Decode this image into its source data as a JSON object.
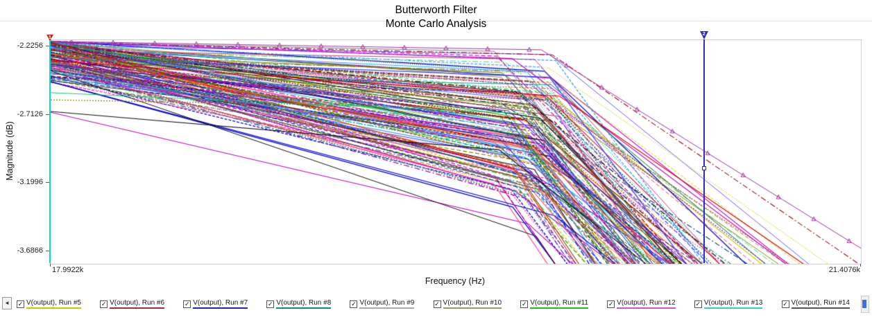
{
  "chart": {
    "title_line1": "Butterworth Filter",
    "title_line2": "Monte Carlo Analysis",
    "xlabel": "Frequency (Hz)",
    "ylabel": "Magnitude (dB)"
  },
  "cursors": [
    {
      "label": "1",
      "freq_hz": 17992.2,
      "line_color": "#00dcdc",
      "flag_color": "#d42222"
    },
    {
      "label": "2",
      "freq_hz": 20749.0,
      "line_color": "#2b2bc8",
      "flag_color": "#2b2bc8"
    }
  ],
  "legend": {
    "scroll_left_glyph": "◄",
    "check_glyph": "✓",
    "scrollbar_thumb_color": "#3f6fe0",
    "items": [
      {
        "label": "V(output), Run #5",
        "color": "#c8c800",
        "checked": true
      },
      {
        "label": "V(output), Run #6",
        "color": "#a03030",
        "checked": true
      },
      {
        "label": "V(output), Run #7",
        "color": "#2222bb",
        "checked": true
      },
      {
        "label": "V(output), Run #8",
        "color": "#118888",
        "checked": true
      },
      {
        "label": "V(output), Run #9",
        "color": "#aaaaaa",
        "checked": true
      },
      {
        "label": "V(output), Run #10",
        "color": "#999966",
        "checked": true
      },
      {
        "label": "V(output), Run #11",
        "color": "#22bb22",
        "checked": true
      },
      {
        "label": "V(output), Run #12",
        "color": "#cc55cc",
        "checked": true
      },
      {
        "label": "V(output), Run #13",
        "color": "#33cccc",
        "checked": true
      },
      {
        "label": "V(output), Run #14",
        "color": "#555555",
        "checked": true
      }
    ]
  },
  "chart_data": {
    "type": "line",
    "title": "Butterworth Filter — Monte Carlo Analysis",
    "xlabel": "Frequency (Hz)",
    "ylabel": "Magnitude (dB)",
    "xlim": [
      17992.2,
      21407.6
    ],
    "ylim": [
      -3.776,
      -2.181
    ],
    "x_ticks": [
      {
        "value": 17992.2,
        "label": "17.9922k"
      },
      {
        "value": 21407.6,
        "label": "21.4076k"
      }
    ],
    "y_ticks": [
      {
        "value": -2.2256,
        "label": "-2.2256"
      },
      {
        "value": -2.7126,
        "label": "-2.7126"
      },
      {
        "value": -3.1996,
        "label": "-3.1996"
      },
      {
        "value": -3.6866,
        "label": "-3.6866"
      }
    ],
    "grid": false,
    "legend_position": "bottom",
    "ensemble": {
      "description": "Approximately 150+ overlapping Monte Carlo run traces of V(output) magnitude vs frequency. Each run falls gently (about 0.1 to 1.0 dB) from 17.9922 kHz to a corner near 20.0 kHz, then rolls off steeply at about 1.2 to 2.7 dB/kHz toward 21.4076 kHz.",
      "num_runs_visible": 160,
      "start_mag_db_range": [
        -2.82,
        -2.19
      ],
      "corner_freq_hz_range": [
        19930,
        20070
      ],
      "corner_mag_db_range": [
        -3.49,
        -2.25
      ],
      "rolloff_db_per_khz_range": [
        1.1,
        2.7
      ]
    },
    "marker_series": {
      "name": "upper-envelope run with triangle markers",
      "color": "#993399",
      "start_mag_db": -2.19,
      "corner_freq_hz": 20060,
      "corner_mag_db": -2.25,
      "rolloff_db_per_khz": 1.05,
      "marker": "triangle-open",
      "marker_step_px": 60
    },
    "outlier_series": {
      "name": "lowest (black) run",
      "color": "#111111",
      "start_mag_db": -2.4,
      "corner_freq_hz": 20040,
      "corner_mag_db": -3.58,
      "rolloff_db_per_khz": 2.5
    },
    "render": {
      "seed": 7,
      "num_runs": 160,
      "start_top_db": -2.188,
      "start_spread_db": 0.3,
      "outlier_prob": 0.04,
      "outlier_extra_db": 0.35,
      "corner_center_hz": 20000,
      "corner_jitter_hz": 140,
      "drop_min_db": 0.06,
      "drop_max_db": 1.0,
      "s2_min_db_per_khz": 1.1,
      "s2_max_db_per_khz": 2.7,
      "palette": [
        "#d40000",
        "#0000d4",
        "#009000",
        "#c000c0",
        "#00a0a0",
        "#c8c800",
        "#8b4513",
        "#ff6600",
        "#606060",
        "#101010",
        "#7a00cc",
        "#004080",
        "#cc3366",
        "#2e8b57",
        "#808000",
        "#4040ff",
        "#ff3399",
        "#00cc66",
        "#990000",
        "#3399ff"
      ],
      "dashes": [
        [],
        [],
        [],
        [],
        [
          4,
          2
        ],
        [
          2,
          2
        ],
        [
          6,
          3
        ],
        [
          1,
          2
        ],
        [
          8,
          3,
          2,
          3
        ]
      ]
    }
  }
}
